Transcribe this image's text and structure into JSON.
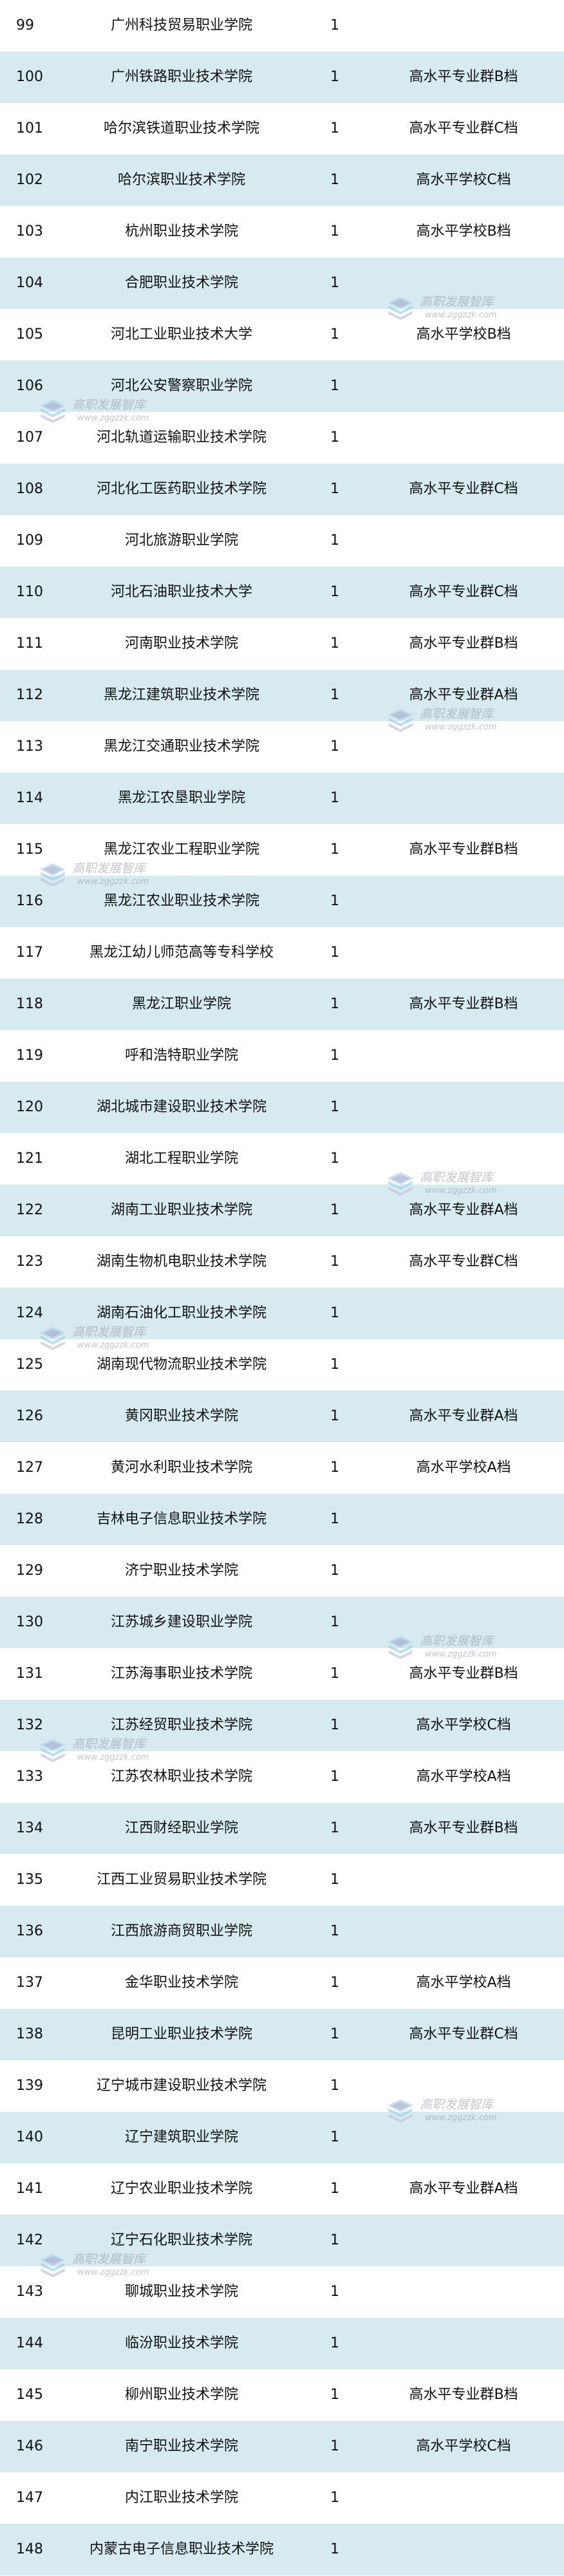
{
  "colors": {
    "row_alt": "#d6eaf0",
    "row": "#ffffff",
    "text": "#111111"
  },
  "watermark": {
    "title": "高职发展智库",
    "url": "www.zggzzk.com",
    "icon": "book-stack-icon"
  },
  "rows": [
    {
      "no": "99",
      "name": "广州科技贸易职业学院",
      "count": "1",
      "level": ""
    },
    {
      "no": "100",
      "name": "广州铁路职业技术学院",
      "count": "1",
      "level": "高水平专业群B档"
    },
    {
      "no": "101",
      "name": "哈尔滨铁道职业技术学院",
      "count": "1",
      "level": "高水平专业群C档"
    },
    {
      "no": "102",
      "name": "哈尔滨职业技术学院",
      "count": "1",
      "level": "高水平学校C档"
    },
    {
      "no": "103",
      "name": "杭州职业技术学院",
      "count": "1",
      "level": "高水平学校B档"
    },
    {
      "no": "104",
      "name": "合肥职业技术学院",
      "count": "1",
      "level": ""
    },
    {
      "no": "105",
      "name": "河北工业职业技术大学",
      "count": "1",
      "level": "高水平学校B档"
    },
    {
      "no": "106",
      "name": "河北公安警察职业学院",
      "count": "1",
      "level": ""
    },
    {
      "no": "107",
      "name": "河北轨道运输职业技术学院",
      "count": "1",
      "level": ""
    },
    {
      "no": "108",
      "name": "河北化工医药职业技术学院",
      "count": "1",
      "level": "高水平专业群C档"
    },
    {
      "no": "109",
      "name": "河北旅游职业学院",
      "count": "1",
      "level": ""
    },
    {
      "no": "110",
      "name": "河北石油职业技术大学",
      "count": "1",
      "level": "高水平专业群C档"
    },
    {
      "no": "111",
      "name": "河南职业技术学院",
      "count": "1",
      "level": "高水平专业群B档"
    },
    {
      "no": "112",
      "name": "黑龙江建筑职业技术学院",
      "count": "1",
      "level": "高水平专业群A档"
    },
    {
      "no": "113",
      "name": "黑龙江交通职业技术学院",
      "count": "1",
      "level": ""
    },
    {
      "no": "114",
      "name": "黑龙江农垦职业学院",
      "count": "1",
      "level": ""
    },
    {
      "no": "115",
      "name": "黑龙江农业工程职业学院",
      "count": "1",
      "level": "高水平专业群B档"
    },
    {
      "no": "116",
      "name": "黑龙江农业职业技术学院",
      "count": "1",
      "level": ""
    },
    {
      "no": "117",
      "name": "黑龙江幼儿师范高等专科学校",
      "count": "1",
      "level": ""
    },
    {
      "no": "118",
      "name": "黑龙江职业学院",
      "count": "1",
      "level": "高水平专业群B档"
    },
    {
      "no": "119",
      "name": "呼和浩特职业学院",
      "count": "1",
      "level": ""
    },
    {
      "no": "120",
      "name": "湖北城市建设职业技术学院",
      "count": "1",
      "level": ""
    },
    {
      "no": "121",
      "name": "湖北工程职业学院",
      "count": "1",
      "level": ""
    },
    {
      "no": "122",
      "name": "湖南工业职业技术学院",
      "count": "1",
      "level": "高水平专业群A档"
    },
    {
      "no": "123",
      "name": "湖南生物机电职业技术学院",
      "count": "1",
      "level": "高水平专业群C档"
    },
    {
      "no": "124",
      "name": "湖南石油化工职业技术学院",
      "count": "1",
      "level": ""
    },
    {
      "no": "125",
      "name": "湖南现代物流职业技术学院",
      "count": "1",
      "level": ""
    },
    {
      "no": "126",
      "name": "黄冈职业技术学院",
      "count": "1",
      "level": "高水平专业群A档"
    },
    {
      "no": "127",
      "name": "黄河水利职业技术学院",
      "count": "1",
      "level": "高水平学校A档"
    },
    {
      "no": "128",
      "name": "吉林电子信息职业技术学院",
      "count": "1",
      "level": ""
    },
    {
      "no": "129",
      "name": "济宁职业技术学院",
      "count": "1",
      "level": ""
    },
    {
      "no": "130",
      "name": "江苏城乡建设职业学院",
      "count": "1",
      "level": ""
    },
    {
      "no": "131",
      "name": "江苏海事职业技术学院",
      "count": "1",
      "level": "高水平专业群B档"
    },
    {
      "no": "132",
      "name": "江苏经贸职业技术学院",
      "count": "1",
      "level": "高水平学校C档"
    },
    {
      "no": "133",
      "name": "江苏农林职业技术学院",
      "count": "1",
      "level": "高水平学校A档"
    },
    {
      "no": "134",
      "name": "江西财经职业学院",
      "count": "1",
      "level": "高水平专业群B档"
    },
    {
      "no": "135",
      "name": "江西工业贸易职业技术学院",
      "count": "1",
      "level": ""
    },
    {
      "no": "136",
      "name": "江西旅游商贸职业学院",
      "count": "1",
      "level": ""
    },
    {
      "no": "137",
      "name": "金华职业技术学院",
      "count": "1",
      "level": "高水平学校A档"
    },
    {
      "no": "138",
      "name": "昆明工业职业技术学院",
      "count": "1",
      "level": "高水平专业群C档"
    },
    {
      "no": "139",
      "name": "辽宁城市建设职业技术学院",
      "count": "1",
      "level": ""
    },
    {
      "no": "140",
      "name": "辽宁建筑职业学院",
      "count": "1",
      "level": ""
    },
    {
      "no": "141",
      "name": "辽宁农业职业技术学院",
      "count": "1",
      "level": "高水平专业群A档"
    },
    {
      "no": "142",
      "name": "辽宁石化职业技术学院",
      "count": "1",
      "level": ""
    },
    {
      "no": "143",
      "name": "聊城职业技术学院",
      "count": "1",
      "level": ""
    },
    {
      "no": "144",
      "name": "临汾职业技术学院",
      "count": "1",
      "level": ""
    },
    {
      "no": "145",
      "name": "柳州职业技术学院",
      "count": "1",
      "level": "高水平专业群B档"
    },
    {
      "no": "146",
      "name": "南宁职业技术学院",
      "count": "1",
      "level": "高水平学校C档"
    },
    {
      "no": "147",
      "name": "内江职业技术学院",
      "count": "1",
      "level": ""
    },
    {
      "no": "148",
      "name": "内蒙古电子信息职业技术学院",
      "count": "1",
      "level": ""
    }
  ]
}
